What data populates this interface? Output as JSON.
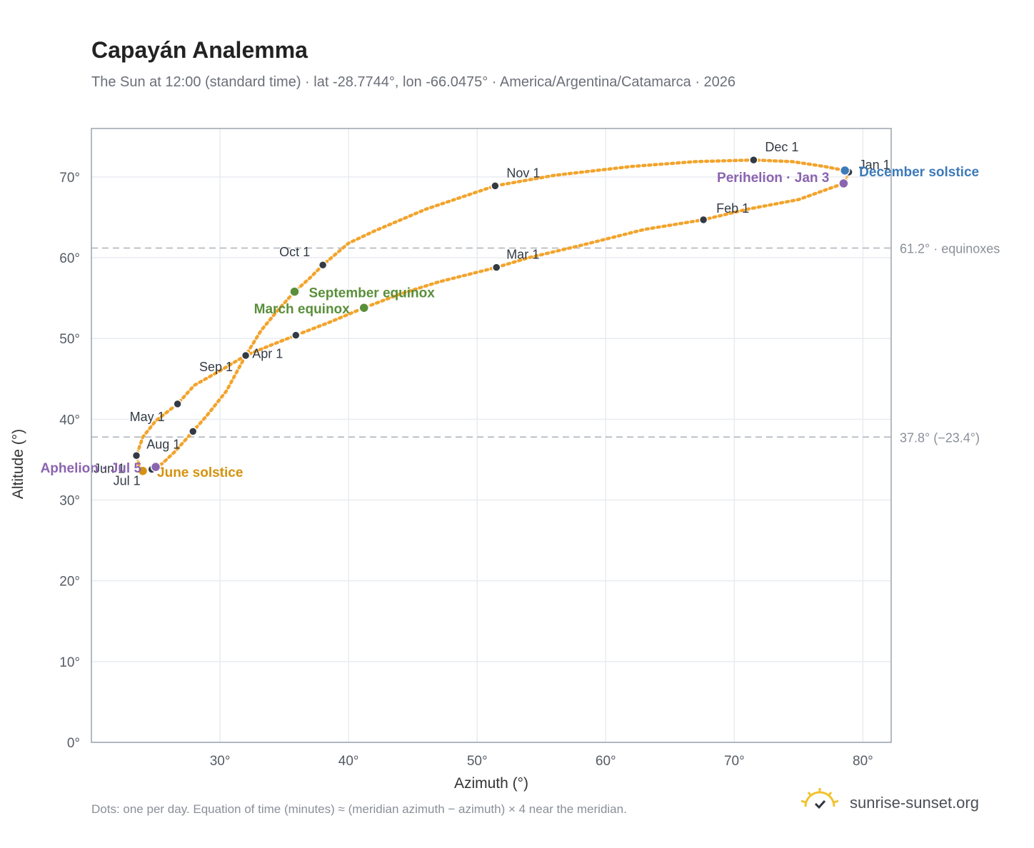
{
  "title": "Capayán Analemma",
  "subtitle": "The Sun at 12:00 (standard time) · lat -28.7744°, lon -66.0475° · America/Argentina/Catamarca · 2026",
  "footnote": "Dots: one per day. Equation of time (minutes) ≈ (meridian azimuth − azimuth) × 4 near the meridian.",
  "brand": {
    "name": "sunrise-sunset.org",
    "icon": "sun-logo-icon"
  },
  "colors": {
    "analemma": "#f2a42c",
    "month": "#333a44",
    "equinox": "#5a8f3a",
    "december": "#3d7ab8",
    "june": "#d4920e",
    "apsis": "#8b64b0",
    "refline": "#aab1ba",
    "grid": "#e8ecf0",
    "frame": "#9aa3ae"
  },
  "chart_data": {
    "type": "scatter",
    "xlabel": "Azimuth (°)",
    "ylabel": "Altitude (°)",
    "xlim": [
      20,
      82.2
    ],
    "ylim": [
      0,
      76
    ],
    "grid": true,
    "xticks": [
      30,
      40,
      50,
      60,
      70,
      80
    ],
    "yticks": [
      0,
      10,
      20,
      30,
      40,
      50,
      60,
      70
    ],
    "tick_format": {
      "x_suffix": "°",
      "y_suffix": "°"
    },
    "reference_lines": [
      {
        "y": 61.2,
        "label": "61.2° · equinoxes"
      },
      {
        "y": 37.8,
        "label": "37.8° (−23.4°)"
      }
    ],
    "analemma_path": [
      [
        78.6,
        70.8
      ],
      [
        78.9,
        70.4
      ],
      [
        78.5,
        69.2
      ],
      [
        75.0,
        67.2
      ],
      [
        71.0,
        66.0
      ],
      [
        67.6,
        64.7
      ],
      [
        63.0,
        63.5
      ],
      [
        58.0,
        61.5
      ],
      [
        54.0,
        60.0
      ],
      [
        51.5,
        58.8
      ],
      [
        47.0,
        57.0
      ],
      [
        44.0,
        55.5
      ],
      [
        41.2,
        53.8
      ],
      [
        38.5,
        52.0
      ],
      [
        35.9,
        50.4
      ],
      [
        34.0,
        49.2
      ],
      [
        32.0,
        47.9
      ],
      [
        30.0,
        46.0
      ],
      [
        28.0,
        44.2
      ],
      [
        26.7,
        41.9
      ],
      [
        25.0,
        39.8
      ],
      [
        24.0,
        37.8
      ],
      [
        23.5,
        35.5
      ],
      [
        23.8,
        33.8
      ],
      [
        24.2,
        33.6
      ],
      [
        24.7,
        33.8
      ],
      [
        25.5,
        34.5
      ],
      [
        26.5,
        36.0
      ],
      [
        27.9,
        38.5
      ],
      [
        29.0,
        40.5
      ],
      [
        30.5,
        43.5
      ],
      [
        32.0,
        47.9
      ],
      [
        33.2,
        51.0
      ],
      [
        34.5,
        53.5
      ],
      [
        35.8,
        55.8
      ],
      [
        37.0,
        57.5
      ],
      [
        38.0,
        59.1
      ],
      [
        40.0,
        61.8
      ],
      [
        42.0,
        63.3
      ],
      [
        46.0,
        66.0
      ],
      [
        51.4,
        68.9
      ],
      [
        56.0,
        70.2
      ],
      [
        62.0,
        71.3
      ],
      [
        67.0,
        71.9
      ],
      [
        71.5,
        72.1
      ],
      [
        74.5,
        71.9
      ],
      [
        77.0,
        71.3
      ],
      [
        78.6,
        70.8
      ]
    ],
    "month_markers": [
      {
        "label": "Jan 1",
        "x": 78.9,
        "y": 70.6,
        "dx": 14,
        "dy": -4,
        "anchor": "start"
      },
      {
        "label": "Feb 1",
        "x": 67.6,
        "y": 64.7,
        "dx": 18,
        "dy": -10,
        "anchor": "start"
      },
      {
        "label": "Mar 1",
        "x": 51.5,
        "y": 58.8,
        "dx": 14,
        "dy": -12,
        "anchor": "start"
      },
      {
        "label": "Apr 1",
        "x": 35.9,
        "y": 50.4,
        "dx": -18,
        "dy": 32,
        "anchor": "end"
      },
      {
        "label": "May 1",
        "x": 26.7,
        "y": 41.9,
        "dx": -18,
        "dy": 24,
        "anchor": "end"
      },
      {
        "label": "Jun 1",
        "x": 23.5,
        "y": 35.5,
        "dx": -16,
        "dy": 24,
        "anchor": "end"
      },
      {
        "label": "Jul 1",
        "x": 24.7,
        "y": 33.8,
        "dx": -16,
        "dy": 22,
        "anchor": "end"
      },
      {
        "label": "Aug 1",
        "x": 27.9,
        "y": 38.5,
        "dx": -18,
        "dy": 24,
        "anchor": "end"
      },
      {
        "label": "Sep 1",
        "x": 32.0,
        "y": 47.9,
        "dx": -18,
        "dy": 22,
        "anchor": "end"
      },
      {
        "label": "Oct 1",
        "x": 38.0,
        "y": 59.1,
        "dx": -18,
        "dy": -12,
        "anchor": "end"
      },
      {
        "label": "Nov 1",
        "x": 51.4,
        "y": 68.9,
        "dx": 16,
        "dy": -12,
        "anchor": "start"
      },
      {
        "label": "Dec 1",
        "x": 71.5,
        "y": 72.1,
        "dx": 16,
        "dy": -12,
        "anchor": "start"
      }
    ],
    "special_points": [
      {
        "label": "December solstice",
        "x": 78.6,
        "y": 70.8,
        "color": "#3d7ab8",
        "dx": 20,
        "dy": 8,
        "anchor": "start"
      },
      {
        "label": "Perihelion · Jan 3",
        "x": 78.5,
        "y": 69.2,
        "color": "#8b64b0",
        "dx": -20,
        "dy": -2,
        "anchor": "end"
      },
      {
        "label": "September equinox",
        "x": 35.8,
        "y": 55.8,
        "color": "#5a8f3a",
        "dx": 20,
        "dy": 8,
        "anchor": "start"
      },
      {
        "label": "March equinox",
        "x": 41.2,
        "y": 53.8,
        "color": "#5a8f3a",
        "dx": -20,
        "dy": 8,
        "anchor": "end"
      },
      {
        "label": "June solstice",
        "x": 24.0,
        "y": 33.6,
        "color": "#d4920e",
        "dx": 20,
        "dy": 8,
        "anchor": "start"
      },
      {
        "label": "Aphelion · Jul 5",
        "x": 25.0,
        "y": 34.1,
        "color": "#8b64b0",
        "dx": -20,
        "dy": 8,
        "anchor": "end"
      }
    ]
  }
}
